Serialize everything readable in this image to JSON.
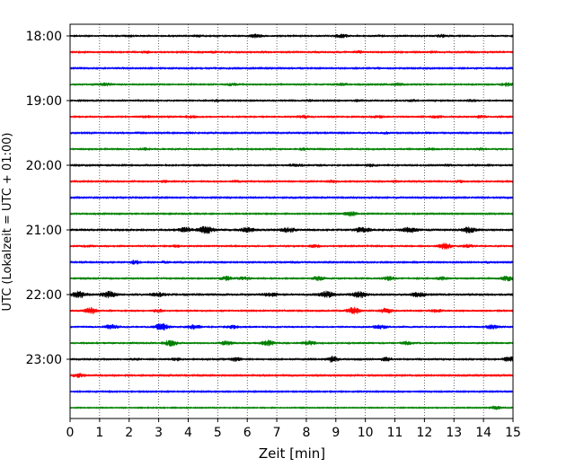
{
  "chart_data": {
    "type": "line",
    "title": "",
    "xlabel": "Zeit  [min]",
    "ylabel": "UTC (Lokalzeit = UTC + 01:00)",
    "xlim": [
      0,
      15
    ],
    "x_ticks": [
      "0",
      "1",
      "2",
      "3",
      "4",
      "5",
      "6",
      "7",
      "8",
      "9",
      "10",
      "11",
      "12",
      "13",
      "14",
      "15"
    ],
    "y_tick_labels": [
      "18:00",
      "19:00",
      "20:00",
      "21:00",
      "22:00",
      "23:00"
    ],
    "y_tick_traces": [
      0,
      4,
      8,
      12,
      16,
      20
    ],
    "grid": "vertical dotted",
    "colors": [
      "#000000",
      "#ff0000",
      "#0000ff",
      "#008000"
    ],
    "trace_interval_min": 15,
    "start_time": "18:00",
    "traces": [
      {
        "time": "18:00",
        "color": "#000000",
        "level": 2.0,
        "bursts": [
          [
            6.3,
            3.5
          ],
          [
            9.2,
            3.5
          ],
          [
            12.6,
            3
          ],
          [
            2.0,
            1.6
          ],
          [
            10.5,
            1.6
          ],
          [
            4.3,
            1.6
          ]
        ]
      },
      {
        "time": "18:15",
        "color": "#ff0000",
        "level": 1.8,
        "bursts": [
          [
            2.6,
            2.4
          ],
          [
            4.9,
            2
          ],
          [
            9.8,
            2.4
          ],
          [
            6.6,
            1.6
          ],
          [
            12.3,
            1.6
          ]
        ]
      },
      {
        "time": "18:30",
        "color": "#0000ff",
        "level": 1.6,
        "bursts": [
          [
            1.6,
            1.6
          ],
          [
            5.0,
            1.6
          ],
          [
            7.8,
            1.6
          ],
          [
            10.4,
            1.6
          ],
          [
            13.8,
            1.6
          ]
        ]
      },
      {
        "time": "18:45",
        "color": "#008000",
        "level": 2.0,
        "bursts": [
          [
            1.2,
            3
          ],
          [
            5.5,
            2.4
          ],
          [
            9.2,
            2.4
          ],
          [
            11.1,
            2.4
          ],
          [
            14.8,
            3.5
          ]
        ]
      },
      {
        "time": "19:00",
        "color": "#000000",
        "level": 2.0,
        "bursts": [
          [
            5.0,
            2
          ],
          [
            9.8,
            2
          ],
          [
            8.1,
            2
          ],
          [
            11.6,
            2
          ],
          [
            13.6,
            2
          ]
        ]
      },
      {
        "time": "19:15",
        "color": "#ff0000",
        "level": 2.0,
        "bursts": [
          [
            2.6,
            2.2
          ],
          [
            4.1,
            2.2
          ],
          [
            7.9,
            2.8
          ],
          [
            10.4,
            2.6
          ],
          [
            12.4,
            2.4
          ],
          [
            13.9,
            2.2
          ]
        ]
      },
      {
        "time": "19:30",
        "color": "#0000ff",
        "level": 1.6,
        "bursts": [
          [
            4.0,
            1.6
          ],
          [
            9.9,
            1.6
          ],
          [
            10.7,
            2.2
          ],
          [
            12.1,
            1.6
          ]
        ]
      },
      {
        "time": "19:45",
        "color": "#008000",
        "level": 2.0,
        "bursts": [
          [
            2.5,
            2
          ],
          [
            7.9,
            2
          ],
          [
            12.2,
            2
          ],
          [
            13.9,
            2
          ]
        ]
      },
      {
        "time": "20:00",
        "color": "#000000",
        "level": 1.8,
        "bursts": [
          [
            7.5,
            1.6
          ],
          [
            7.8,
            1.8
          ],
          [
            8.5,
            1.6
          ],
          [
            10.2,
            3
          ],
          [
            12.8,
            1.8
          ],
          [
            14.2,
            1.6
          ]
        ]
      },
      {
        "time": "20:15",
        "color": "#ff0000",
        "level": 1.8,
        "bursts": [
          [
            3.2,
            2
          ],
          [
            5.6,
            2
          ],
          [
            8.9,
            2.4
          ],
          [
            11.0,
            2
          ],
          [
            13.2,
            2.2
          ]
        ]
      },
      {
        "time": "20:30",
        "color": "#0000ff",
        "level": 1.6,
        "bursts": [
          [
            1.5,
            1.6
          ],
          [
            4.2,
            1.6
          ],
          [
            11.1,
            1.6
          ]
        ]
      },
      {
        "time": "20:45",
        "color": "#008000",
        "level": 1.4,
        "bursts": [
          [
            9.5,
            6
          ]
        ]
      },
      {
        "time": "21:00",
        "color": "#000000",
        "level": 3.0,
        "bursts": [
          [
            4.6,
            7
          ],
          [
            3.9,
            4
          ],
          [
            7.4,
            4
          ],
          [
            9.9,
            5
          ],
          [
            11.5,
            5
          ],
          [
            13.5,
            5
          ],
          [
            6.0,
            4
          ]
        ]
      },
      {
        "time": "21:15",
        "color": "#ff0000",
        "level": 2.0,
        "bursts": [
          [
            0.6,
            2
          ],
          [
            3.6,
            2
          ],
          [
            8.3,
            3
          ],
          [
            12.7,
            6
          ],
          [
            13.5,
            3
          ]
        ]
      },
      {
        "time": "21:30",
        "color": "#0000ff",
        "level": 1.6,
        "bursts": [
          [
            2.2,
            4
          ],
          [
            3.2,
            2.4
          ],
          [
            7.6,
            2
          ],
          [
            11.7,
            2
          ],
          [
            14.1,
            2
          ]
        ]
      },
      {
        "time": "21:45",
        "color": "#008000",
        "level": 2.0,
        "bursts": [
          [
            5.3,
            4
          ],
          [
            5.9,
            3
          ],
          [
            8.4,
            4
          ],
          [
            10.8,
            4
          ],
          [
            12.6,
            3
          ],
          [
            14.8,
            5
          ]
        ]
      },
      {
        "time": "22:00",
        "color": "#000000",
        "level": 3.0,
        "bursts": [
          [
            0.3,
            6
          ],
          [
            1.3,
            6
          ],
          [
            3.0,
            3
          ],
          [
            6.8,
            3
          ],
          [
            8.7,
            6
          ],
          [
            9.8,
            6
          ],
          [
            11.8,
            4
          ]
        ]
      },
      {
        "time": "22:15",
        "color": "#ff0000",
        "level": 2.0,
        "bursts": [
          [
            0.7,
            7
          ],
          [
            3.0,
            3
          ],
          [
            9.6,
            7
          ],
          [
            10.7,
            5
          ],
          [
            12.4,
            3
          ]
        ]
      },
      {
        "time": "22:30",
        "color": "#0000ff",
        "level": 2.4,
        "bursts": [
          [
            1.4,
            4
          ],
          [
            3.1,
            7
          ],
          [
            4.2,
            4
          ],
          [
            5.5,
            3
          ],
          [
            10.5,
            4
          ],
          [
            14.3,
            4
          ]
        ]
      },
      {
        "time": "22:45",
        "color": "#008000",
        "level": 2.2,
        "bursts": [
          [
            3.4,
            6
          ],
          [
            5.3,
            4
          ],
          [
            6.7,
            5
          ],
          [
            8.1,
            4
          ],
          [
            11.4,
            3
          ]
        ]
      },
      {
        "time": "23:00",
        "color": "#000000",
        "level": 1.8,
        "bursts": [
          [
            3.6,
            3
          ],
          [
            5.6,
            4
          ],
          [
            8.9,
            6
          ],
          [
            10.7,
            4
          ],
          [
            14.9,
            6
          ],
          [
            2.2,
            2
          ]
        ]
      },
      {
        "time": "23:15",
        "color": "#ff0000",
        "level": 1.6,
        "bursts": [
          [
            0.3,
            5
          ],
          [
            2.0,
            2
          ]
        ]
      },
      {
        "time": "23:30",
        "color": "#0000ff",
        "level": 1.4,
        "bursts": []
      },
      {
        "time": "23:45",
        "color": "#008000",
        "level": 1.2,
        "bursts": [
          [
            14.4,
            4
          ]
        ]
      }
    ]
  }
}
